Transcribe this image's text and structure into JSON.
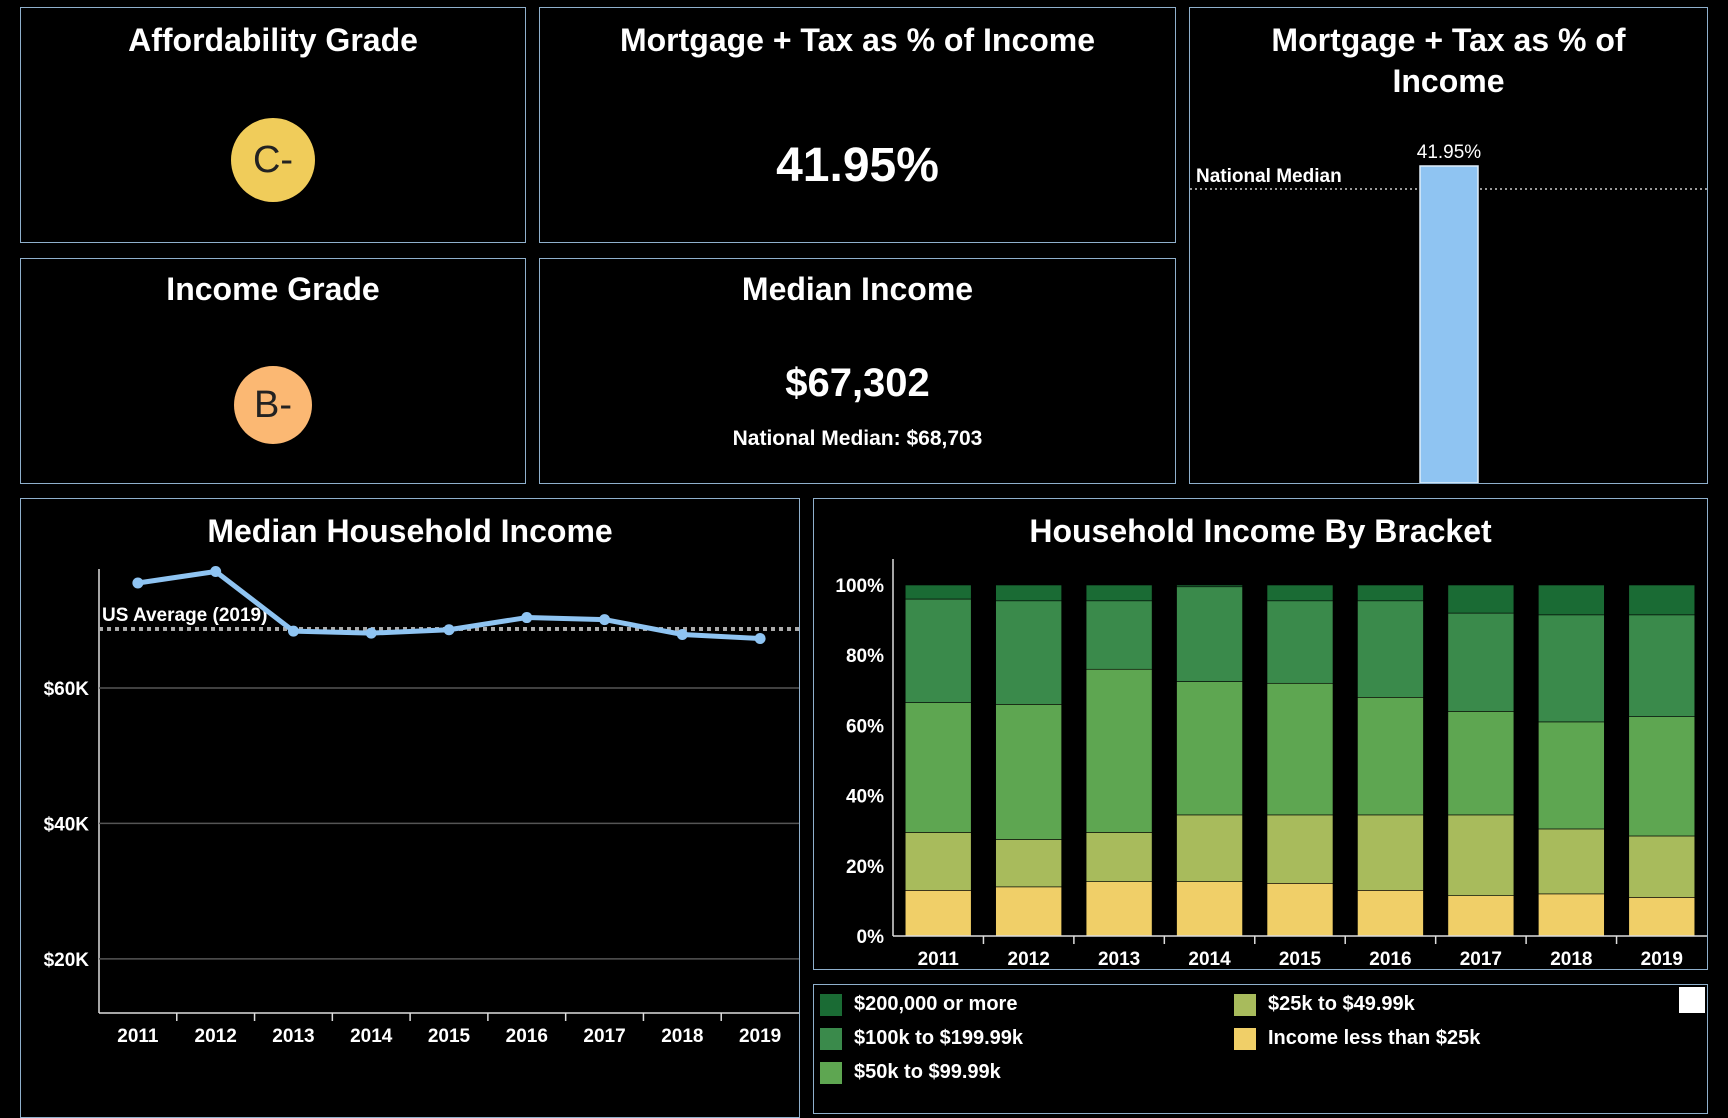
{
  "affordability": {
    "title": "Affordability Grade",
    "grade": "C-",
    "color": "#f0cc5a"
  },
  "income_grade": {
    "title": "Income Grade",
    "grade": "B-",
    "color": "#fbb873"
  },
  "mortgage_pct": {
    "title": "Mortgage + Tax as % of Income",
    "value": "41.95%"
  },
  "median_income": {
    "title": "Median Income",
    "value": "$67,302",
    "note": "National Median: $68,703"
  },
  "colors": {
    "line": "#8fc4f2",
    "bar_highlight": "#8fc4f2",
    "brackets": [
      "#1a6b34",
      "#3a8a4b",
      "#5ea651",
      "#a8bb5c",
      "#f0cf68"
    ]
  },
  "chart_data": [
    {
      "type": "bar",
      "title": "Mortgage + Tax as % of Income",
      "categories": [
        ""
      ],
      "values": [
        41.95
      ],
      "data_label": "41.95%",
      "reference_line": {
        "label": "National Median"
      }
    },
    {
      "type": "line",
      "title": "Median Household Income",
      "x": [
        "2011",
        "2012",
        "2013",
        "2014",
        "2015",
        "2016",
        "2017",
        "2018",
        "2019"
      ],
      "y": [
        75500,
        77200,
        68400,
        68100,
        68600,
        70400,
        70100,
        67900,
        67300
      ],
      "ylim": [
        12000,
        82000
      ],
      "yticks": [
        20000,
        40000,
        60000
      ],
      "ytick_labels": [
        "$20K",
        "$40K",
        "$60K"
      ],
      "reference_line": {
        "label": "US Average (2019)",
        "value": 68703
      },
      "grid": true
    },
    {
      "type": "bar",
      "stacked": true,
      "title": "Household Income By Bracket",
      "categories": [
        "2011",
        "2012",
        "2013",
        "2014",
        "2015",
        "2016",
        "2017",
        "2018",
        "2019"
      ],
      "ylim": [
        0,
        100
      ],
      "yticks": [
        0,
        20,
        40,
        60,
        80,
        100
      ],
      "ytick_labels": [
        "0%",
        "20%",
        "40%",
        "60%",
        "80%",
        "100%"
      ],
      "series": [
        {
          "name": "Income less than $25k",
          "values": [
            13,
            14,
            15.5,
            15.5,
            15,
            13,
            11.5,
            12,
            11
          ]
        },
        {
          "name": "$25k to $49.99k",
          "values": [
            16.5,
            13.5,
            14,
            19,
            19.5,
            21.5,
            23,
            18.5,
            17.5
          ]
        },
        {
          "name": "$50k to $99.99k",
          "values": [
            37,
            38.5,
            46.5,
            38,
            37.5,
            33.5,
            29.5,
            30.5,
            34
          ]
        },
        {
          "name": "$100k to $199.99k",
          "values": [
            29.5,
            29.5,
            19.5,
            27,
            23.5,
            27.5,
            28,
            30.5,
            29
          ]
        },
        {
          "name": "$200,000 or more",
          "values": [
            4,
            4.5,
            4.5,
            0.5,
            4.5,
            4.5,
            8,
            8.5,
            8.5
          ]
        }
      ],
      "legend": {
        "placement": "bottom",
        "items": [
          "$200,000 or more",
          "$100k to $199.99k",
          "$50k to $99.99k",
          "$25k to $49.99k",
          "Income less than $25k"
        ]
      }
    }
  ]
}
